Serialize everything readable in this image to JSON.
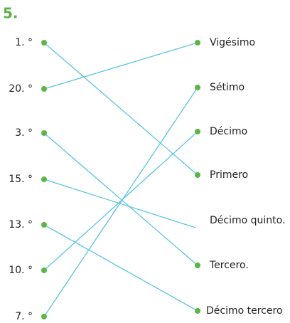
{
  "title": "5.",
  "left": [
    "1. °",
    "20. °",
    "3. °",
    "15. °",
    "13. °",
    "10. °",
    "7. °"
  ],
  "right": [
    "Vigésimo",
    "Sétimo",
    "Décimo",
    "Primero",
    "Décimo quinto.",
    "Tercero.",
    "Décimo tercero"
  ]
}
